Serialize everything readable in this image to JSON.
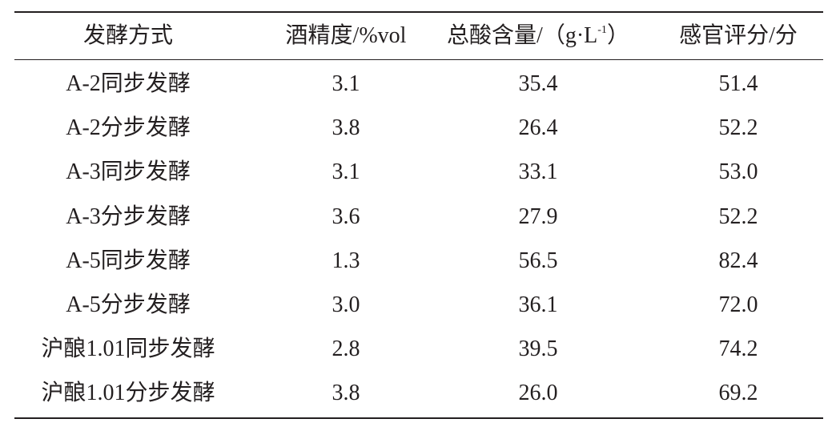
{
  "table": {
    "header": [
      "发酵方式",
      "酒精度/%vol",
      [
        "总酸含量/（g·L",
        "-1",
        "）"
      ],
      "感官评分/分"
    ],
    "rows": [
      [
        "A-2同步发酵",
        "3.1",
        "35.4",
        "51.4"
      ],
      [
        "A-2分步发酵",
        "3.8",
        "26.4",
        "52.2"
      ],
      [
        "A-3同步发酵",
        "3.1",
        "33.1",
        "53.0"
      ],
      [
        "A-3分步发酵",
        "3.6",
        "27.9",
        "52.2"
      ],
      [
        "A-5同步发酵",
        "1.3",
        "56.5",
        "82.4"
      ],
      [
        "A-5分步发酵",
        "3.0",
        "36.1",
        "72.0"
      ],
      [
        "沪酿1.01同步发酵",
        "2.8",
        "39.5",
        "74.2"
      ],
      [
        "沪酿1.01分步发酵",
        "3.8",
        "26.0",
        "69.2"
      ]
    ]
  }
}
